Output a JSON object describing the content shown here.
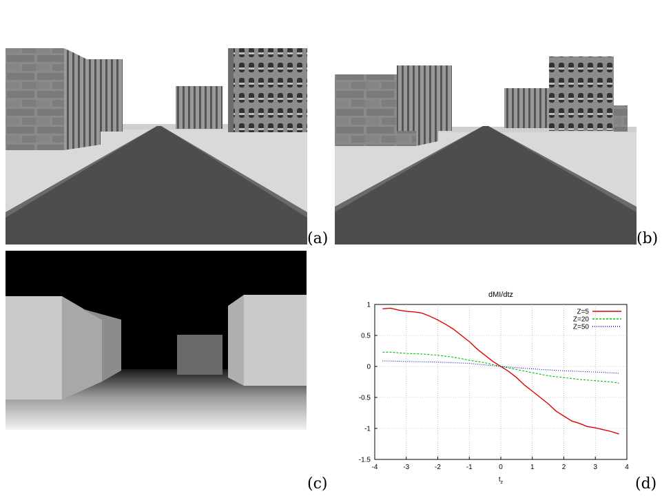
{
  "panels": {
    "a": {
      "label": "(a)"
    },
    "b": {
      "label": "(b)"
    },
    "c": {
      "label": "(c)"
    },
    "d": {
      "label": "(d)"
    }
  },
  "colors": {
    "sky": "#ffffff",
    "ground": "#d9d9d9",
    "road": "#4d4d4d",
    "road_edge": "#6a6a6a",
    "depth_background": "#000000"
  },
  "chart_data": {
    "type": "line",
    "title": "dMI/dtz",
    "xlabel": "tz",
    "ylabel": "",
    "xlim": [
      -4,
      4
    ],
    "ylim": [
      -1.5,
      1
    ],
    "xticks": [
      "-4",
      "-3",
      "-2",
      "-1",
      "0",
      "1",
      "2",
      "3",
      "4"
    ],
    "yticks": [
      "1",
      "0.5",
      "0",
      "-0.5",
      "-1",
      "-1.5"
    ],
    "grid": true,
    "legend_position": "top-right",
    "series": [
      {
        "name": "Z=5",
        "color": "#e00000",
        "dash": "",
        "x": [
          -3.75,
          -3.5,
          -3.25,
          -3.0,
          -2.75,
          -2.5,
          -2.25,
          -2.0,
          -1.75,
          -1.5,
          -1.25,
          -1.0,
          -0.75,
          -0.5,
          -0.25,
          0.0,
          0.25,
          0.5,
          0.75,
          1.0,
          1.25,
          1.5,
          1.75,
          2.0,
          2.25,
          2.5,
          2.75,
          3.0,
          3.25,
          3.5,
          3.75
        ],
        "y": [
          0.93,
          0.94,
          0.91,
          0.89,
          0.88,
          0.86,
          0.81,
          0.75,
          0.68,
          0.6,
          0.5,
          0.4,
          0.28,
          0.18,
          0.08,
          0.0,
          -0.08,
          -0.18,
          -0.3,
          -0.4,
          -0.5,
          -0.6,
          -0.72,
          -0.8,
          -0.88,
          -0.92,
          -0.97,
          -0.99,
          -1.02,
          -1.05,
          -1.09
        ]
      },
      {
        "name": "Z=20",
        "color": "#00c000",
        "dash": "3,2",
        "x": [
          -3.75,
          -3.5,
          -3.0,
          -2.5,
          -2.0,
          -1.5,
          -1.0,
          -0.5,
          0.0,
          0.5,
          1.0,
          1.5,
          2.0,
          2.5,
          3.0,
          3.5,
          3.75
        ],
        "y": [
          0.23,
          0.23,
          0.21,
          0.2,
          0.18,
          0.15,
          0.1,
          0.06,
          0.0,
          -0.05,
          -0.1,
          -0.15,
          -0.18,
          -0.21,
          -0.23,
          -0.25,
          -0.27
        ]
      },
      {
        "name": "Z=50",
        "color": "#0000d0",
        "dash": "1,2",
        "x": [
          -3.75,
          -3.0,
          -2.0,
          -1.0,
          0.0,
          1.0,
          2.0,
          3.0,
          3.75
        ],
        "y": [
          0.09,
          0.08,
          0.07,
          0.05,
          0.0,
          -0.04,
          -0.07,
          -0.09,
          -0.11
        ]
      }
    ]
  }
}
